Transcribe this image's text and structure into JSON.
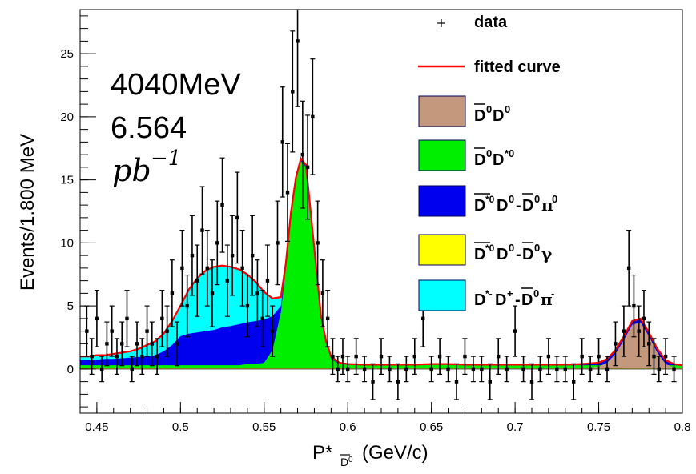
{
  "chart_data": {
    "type": "histogram",
    "title": "",
    "xlabel": "P*",
    "xlabel_sub": "D",
    "xlabel_sub_sup": "0",
    "xlabel_unit": "(GeV/c)",
    "ylabel": "Events/1.800 MeV",
    "xlim": [
      0.44,
      0.8
    ],
    "ylim": [
      -3.5,
      28.5
    ],
    "x_ticks": [
      0.45,
      0.5,
      0.55,
      0.6,
      0.65,
      0.7,
      0.75,
      0.8
    ],
    "x_tick_labels": [
      "0.45",
      "0.5",
      "0.55",
      "0.6",
      "0.65",
      "0.7",
      "0.75",
      "0.8"
    ],
    "y_ticks": [
      0,
      5,
      10,
      15,
      20,
      25
    ],
    "y_tick_labels": [
      "0",
      "5",
      "10",
      "15",
      "20",
      "25"
    ],
    "grid": false,
    "legend_position": "top-right",
    "annotations": {
      "energy": "4040MeV",
      "luminosity_value": "6.564",
      "luminosity_unit_base": "pb",
      "luminosity_unit_exp": "−1"
    },
    "legend": {
      "data": "data",
      "fitted": "fitted curve",
      "s1": {
        "bar": "D",
        "sup": "0",
        "rest": "D",
        "rest_sup": "0"
      },
      "s2": {
        "bar": "D",
        "sup": "0",
        "rest": "D",
        "rest_sup": "*0"
      },
      "s3": {
        "bar": "D",
        "sup": "*0",
        "rest": "D",
        "rest_sup": "0",
        "minus": "-",
        "bar2": "D",
        "sup2": "0",
        "tail": "π",
        "tail_sup": "0"
      },
      "s4": {
        "bar": "D",
        "sup": "*0",
        "rest": "D",
        "rest_sup": "0",
        "minus": "-",
        "bar2": "D",
        "sup2": "0",
        "tail": "γ",
        "tail_sup": ""
      },
      "s5": {
        "lead": "D",
        "lead_sup": "*-",
        "rest": "D",
        "rest_sup": "+",
        "minus": "-",
        "bar2": "D",
        "sup2": "0",
        "tail": "π",
        "tail_sup": "-"
      }
    },
    "series_colors": {
      "D0barD0": "#c4987c",
      "D0barDstar0": "#00ee00",
      "Dstar0barD0_pi0": "#0000ee",
      "Dstar0barD0_gamma": "#ffff00",
      "DstarminusDplus_pi": "#00ffff",
      "fit": "#ff0000",
      "data": "#000000"
    },
    "components_x": [
      0.44,
      0.445,
      0.45,
      0.455,
      0.46,
      0.465,
      0.47,
      0.475,
      0.48,
      0.485,
      0.49,
      0.495,
      0.5,
      0.505,
      0.51,
      0.515,
      0.52,
      0.525,
      0.53,
      0.535,
      0.54,
      0.545,
      0.55,
      0.555,
      0.56,
      0.563,
      0.566,
      0.569,
      0.572,
      0.575,
      0.578,
      0.581,
      0.584,
      0.587,
      0.59,
      0.595,
      0.6,
      0.61,
      0.62,
      0.63,
      0.64,
      0.65,
      0.66,
      0.67,
      0.68,
      0.69,
      0.7,
      0.71,
      0.72,
      0.73,
      0.74,
      0.75,
      0.755,
      0.76,
      0.765,
      0.77,
      0.775,
      0.78,
      0.785,
      0.79,
      0.795,
      0.8
    ],
    "series": [
      {
        "name": "D0barD0",
        "values": [
          0,
          0,
          0,
          0,
          0,
          0,
          0,
          0,
          0,
          0,
          0,
          0,
          0,
          0,
          0,
          0,
          0,
          0,
          0,
          0,
          0,
          0,
          0,
          0,
          0,
          0,
          0,
          0,
          0,
          0,
          0,
          0,
          0,
          0,
          0,
          0,
          0,
          0,
          0,
          0,
          0,
          0,
          0,
          0,
          0,
          0,
          0,
          0,
          0,
          0,
          0.05,
          0.2,
          0.5,
          1.2,
          2.3,
          3.5,
          3.7,
          2.6,
          1.3,
          0.4,
          0.1,
          0
        ]
      },
      {
        "name": "Dstar0barD0_gamma",
        "values": [
          0.1,
          0.1,
          0.1,
          0.1,
          0.1,
          0.1,
          0.1,
          0.1,
          0.1,
          0.1,
          0.1,
          0.1,
          0.1,
          0.1,
          0.1,
          0.1,
          0.1,
          0.1,
          0.1,
          0.1,
          0.1,
          0.1,
          0.1,
          0.1,
          0.1,
          0.1,
          0.1,
          0.1,
          0.1,
          0.1,
          0.1,
          0.1,
          0.1,
          0.1,
          0.1,
          0.1,
          0.05,
          0.05,
          0.05,
          0.05,
          0.05,
          0.05,
          0.05,
          0.05,
          0.05,
          0.05,
          0.05,
          0.05,
          0.05,
          0.05,
          0.05,
          0.05,
          0.05,
          0.05,
          0.05,
          0.05,
          0.05,
          0.05,
          0.05,
          0.05,
          0.05,
          0.05
        ]
      },
      {
        "name": "DstarminusDplus_pi",
        "values": [
          0.05,
          0.05,
          0.05,
          0.05,
          0.05,
          0.05,
          0.05,
          0.05,
          0.05,
          0.05,
          0.05,
          0.05,
          0.05,
          0.05,
          0.05,
          0.05,
          0.05,
          0.05,
          0.05,
          0.05,
          0.05,
          0.05,
          0.05,
          0.05,
          0.05,
          0.05,
          0.05,
          0.05,
          0.05,
          0.05,
          0.05,
          0.05,
          0.05,
          0.05,
          0.05,
          0.05,
          0,
          0,
          0,
          0,
          0,
          0,
          0,
          0,
          0,
          0,
          0,
          0,
          0,
          0,
          0,
          0,
          0,
          0,
          0,
          0,
          0,
          0,
          0,
          0,
          0,
          0
        ]
      },
      {
        "name": "D0barDstar0",
        "values": [
          0.3,
          0.3,
          0.3,
          0.3,
          0.3,
          0.3,
          0.3,
          0.3,
          0.3,
          0.3,
          0.3,
          0.3,
          0.3,
          0.3,
          0.3,
          0.3,
          0.3,
          0.3,
          0.3,
          0.3,
          0.4,
          0.4,
          0.5,
          1.5,
          4.5,
          8,
          12,
          15,
          16.5,
          16,
          12,
          8,
          4,
          2,
          0.8,
          0.4,
          0.35,
          0.3,
          0.3,
          0.3,
          0.3,
          0.35,
          0.35,
          0.3,
          0.3,
          0.3,
          0.3,
          0.3,
          0.3,
          0.3,
          0.3,
          0.3,
          0.3,
          0.3,
          0.3,
          0.3,
          0.3,
          0.3,
          0.3,
          0.3,
          0.3,
          0.3
        ]
      },
      {
        "name": "Dstar0barD0_pi0",
        "values": [
          0.7,
          0.7,
          0.75,
          0.8,
          0.8,
          0.85,
          0.9,
          0.95,
          1.0,
          1.1,
          1.4,
          1.9,
          2.6,
          2.8,
          2.9,
          3.0,
          3.1,
          3.3,
          3.4,
          3.55,
          3.7,
          3.8,
          3.9,
          4.2,
          5.0,
          8.2,
          12.2,
          15.1,
          16.6,
          16.1,
          12.1,
          8.1,
          4.1,
          2.1,
          0.9,
          0.4,
          0.35,
          0.3,
          0.3,
          0.3,
          0.3,
          0.35,
          0.35,
          0.3,
          0.3,
          0.3,
          0.3,
          0.3,
          0.3,
          0.3,
          0.35,
          0.5,
          0.8,
          1.5,
          2.6,
          3.8,
          4.0,
          2.9,
          1.6,
          0.7,
          0.4,
          0.3
        ]
      },
      {
        "name": "cyan_total",
        "values": [
          1.0,
          1.0,
          1.1,
          1.1,
          1.2,
          1.3,
          1.4,
          1.6,
          1.9,
          2.2,
          2.8,
          3.8,
          5.0,
          6.3,
          7.2,
          7.8,
          8.1,
          8.2,
          8.1,
          7.9,
          7.5,
          6.9,
          6.1,
          5.6,
          5.7,
          8.4,
          12.4,
          15.2,
          16.7,
          16.2,
          12.2,
          8.2,
          4.2,
          2.2,
          1.0,
          0.5,
          0.4,
          0.35,
          0.35,
          0.35,
          0.35,
          0.4,
          0.4,
          0.35,
          0.35,
          0.35,
          0.35,
          0.35,
          0.35,
          0.35,
          0.4,
          0.5,
          0.8,
          1.5,
          2.6,
          3.8,
          4.0,
          2.9,
          1.6,
          0.7,
          0.4,
          0.3
        ]
      }
    ],
    "fit": {
      "name": "fitted curve",
      "values": [
        1.0,
        1.0,
        1.1,
        1.1,
        1.2,
        1.3,
        1.4,
        1.6,
        1.9,
        2.2,
        2.8,
        3.8,
        5.0,
        6.3,
        7.2,
        7.8,
        8.1,
        8.2,
        8.1,
        7.9,
        7.5,
        6.9,
        6.1,
        5.6,
        5.7,
        8.4,
        12.4,
        15.2,
        16.7,
        16.2,
        12.2,
        8.2,
        4.2,
        2.2,
        1.0,
        0.5,
        0.4,
        0.35,
        0.35,
        0.35,
        0.35,
        0.4,
        0.4,
        0.35,
        0.35,
        0.35,
        0.35,
        0.35,
        0.35,
        0.35,
        0.4,
        0.5,
        0.8,
        1.5,
        2.6,
        3.8,
        4.0,
        2.9,
        1.6,
        0.7,
        0.4,
        0.3
      ]
    },
    "data_points": [
      [
        0.444,
        3
      ],
      [
        0.447,
        1
      ],
      [
        0.45,
        4
      ],
      [
        0.453,
        0
      ],
      [
        0.456,
        2
      ],
      [
        0.459,
        3
      ],
      [
        0.462,
        1
      ],
      [
        0.465,
        2
      ],
      [
        0.468,
        4
      ],
      [
        0.471,
        0
      ],
      [
        0.474,
        2
      ],
      [
        0.477,
        1
      ],
      [
        0.48,
        3
      ],
      [
        0.483,
        2
      ],
      [
        0.486,
        1
      ],
      [
        0.489,
        4
      ],
      [
        0.492,
        3
      ],
      [
        0.495,
        6
      ],
      [
        0.498,
        2
      ],
      [
        0.501,
        8
      ],
      [
        0.504,
        5
      ],
      [
        0.507,
        9
      ],
      [
        0.51,
        7
      ],
      [
        0.513,
        11
      ],
      [
        0.516,
        8
      ],
      [
        0.519,
        6
      ],
      [
        0.522,
        10
      ],
      [
        0.525,
        13
      ],
      [
        0.528,
        7
      ],
      [
        0.531,
        9
      ],
      [
        0.534,
        12
      ],
      [
        0.537,
        8
      ],
      [
        0.54,
        5
      ],
      [
        0.543,
        9
      ],
      [
        0.546,
        6
      ],
      [
        0.549,
        4
      ],
      [
        0.552,
        7
      ],
      [
        0.555,
        3
      ],
      [
        0.558,
        10
      ],
      [
        0.561,
        18
      ],
      [
        0.564,
        14
      ],
      [
        0.567,
        22
      ],
      [
        0.57,
        26
      ],
      [
        0.573,
        17
      ],
      [
        0.576,
        16
      ],
      [
        0.579,
        20
      ],
      [
        0.582,
        10
      ],
      [
        0.585,
        6
      ],
      [
        0.588,
        4
      ],
      [
        0.591,
        1
      ],
      [
        0.594,
        0
      ],
      [
        0.597,
        1
      ],
      [
        0.6,
        0
      ],
      [
        0.605,
        1
      ],
      [
        0.61,
        0
      ],
      [
        0.615,
        -1
      ],
      [
        0.62,
        1
      ],
      [
        0.625,
        0
      ],
      [
        0.63,
        -1
      ],
      [
        0.635,
        0
      ],
      [
        0.64,
        1
      ],
      [
        0.645,
        4
      ],
      [
        0.65,
        0
      ],
      [
        0.655,
        1
      ],
      [
        0.66,
        0
      ],
      [
        0.665,
        -1
      ],
      [
        0.67,
        1
      ],
      [
        0.675,
        0
      ],
      [
        0.68,
        0
      ],
      [
        0.685,
        -1
      ],
      [
        0.69,
        1
      ],
      [
        0.695,
        0
      ],
      [
        0.7,
        3
      ],
      [
        0.705,
        0
      ],
      [
        0.71,
        -1
      ],
      [
        0.715,
        0
      ],
      [
        0.72,
        1
      ],
      [
        0.725,
        0
      ],
      [
        0.73,
        0
      ],
      [
        0.735,
        -1
      ],
      [
        0.74,
        1
      ],
      [
        0.745,
        0
      ],
      [
        0.75,
        1
      ],
      [
        0.755,
        0
      ],
      [
        0.76,
        2
      ],
      [
        0.765,
        3
      ],
      [
        0.768,
        8
      ],
      [
        0.771,
        5
      ],
      [
        0.774,
        3
      ],
      [
        0.777,
        4
      ],
      [
        0.78,
        2
      ],
      [
        0.783,
        1
      ],
      [
        0.786,
        0
      ],
      [
        0.79,
        1
      ],
      [
        0.795,
        0
      ]
    ]
  }
}
